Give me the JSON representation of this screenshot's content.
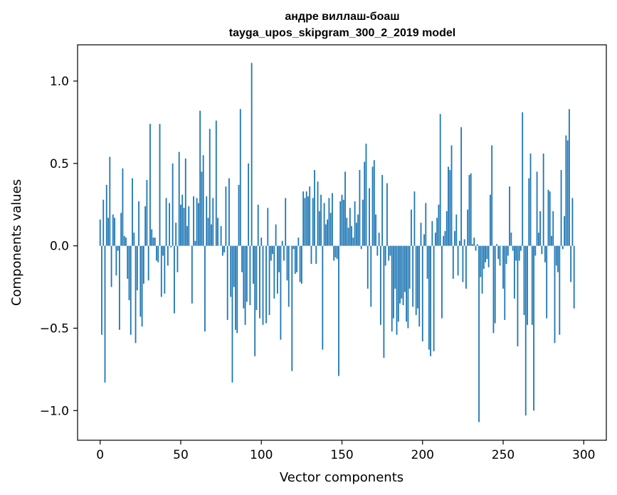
{
  "chart_data": {
    "type": "bar",
    "title": "андре виллаш-боаш",
    "subtitle": "tayga_upos_skipgram_300_2_2019 model",
    "xlabel": "Vector components",
    "ylabel": "Components values",
    "xlim": [
      -14,
      314
    ],
    "ylim": [
      -1.18,
      1.22
    ],
    "xticks": [
      0,
      50,
      100,
      150,
      200,
      250,
      300
    ],
    "xtick_labels": [
      "0",
      "50",
      "100",
      "150",
      "200",
      "250",
      "300"
    ],
    "yticks": [
      -1.0,
      -0.5,
      0.0,
      0.5,
      1.0
    ],
    "ytick_labels": [
      "−1.0",
      "−0.5",
      "0.0",
      "0.5",
      "1.0"
    ],
    "bar_color": "#1f77b4",
    "grid": false,
    "values": [
      0.16,
      -0.54,
      0.28,
      -0.83,
      0.37,
      0.17,
      0.54,
      -0.25,
      0.19,
      0.17,
      -0.18,
      -0.03,
      -0.51,
      0.2,
      0.47,
      0.06,
      0.05,
      -0.2,
      -0.33,
      -0.54,
      0.41,
      0.08,
      -0.59,
      -0.27,
      0.27,
      -0.43,
      -0.49,
      -0.23,
      0.24,
      0.4,
      -0.21,
      0.74,
      0.1,
      0.05,
      0.05,
      -0.09,
      -0.1,
      0.74,
      -0.31,
      -0.06,
      -0.29,
      0.29,
      -0.12,
      0.26,
      -0.01,
      0.5,
      -0.41,
      0.14,
      -0.16,
      0.57,
      0.25,
      0.31,
      0.23,
      0.53,
      0.12,
      0.24,
      0.0,
      -0.35,
      0.3,
      0.03,
      0.29,
      0.26,
      0.82,
      0.45,
      0.55,
      -0.52,
      0.3,
      0.17,
      0.71,
      0.13,
      0.29,
      0.0,
      0.76,
      0.17,
      0.0,
      0.12,
      -0.06,
      -0.04,
      0.36,
      -0.45,
      0.41,
      -0.31,
      -0.83,
      -0.25,
      -0.51,
      -0.53,
      0.37,
      0.83,
      -0.16,
      -0.38,
      -0.48,
      -0.34,
      0.5,
      -0.36,
      1.11,
      -0.23,
      -0.67,
      -0.39,
      0.25,
      -0.44,
      0.05,
      -0.48,
      0.0,
      -0.47,
      0.23,
      -0.42,
      -0.09,
      -0.05,
      -0.32,
      0.13,
      -0.29,
      -0.16,
      -0.57,
      0.03,
      -0.09,
      0.29,
      -0.21,
      -0.37,
      0.0,
      -0.76,
      -0.02,
      -0.17,
      -0.16,
      0.05,
      -0.22,
      -0.23,
      0.33,
      0.29,
      0.33,
      0.3,
      0.36,
      -0.11,
      0.29,
      0.46,
      -0.11,
      0.39,
      0.21,
      0.31,
      -0.63,
      0.26,
      0.13,
      0.16,
      0.29,
      0.2,
      0.32,
      -0.09,
      -0.07,
      -0.08,
      -0.79,
      0.27,
      0.31,
      0.28,
      0.45,
      0.17,
      0.11,
      0.23,
      0.12,
      0.05,
      0.27,
      0.14,
      0.19,
      0.46,
      -0.02,
      0.28,
      0.51,
      0.62,
      -0.26,
      0.35,
      -0.37,
      0.48,
      0.52,
      0.19,
      -0.06,
      0.08,
      -0.48,
      0.43,
      -0.68,
      -0.12,
      0.38,
      -0.09,
      -0.06,
      -0.52,
      -0.44,
      -0.26,
      -0.54,
      -0.46,
      -0.35,
      -0.32,
      -0.36,
      -0.28,
      -0.46,
      -0.5,
      -0.26,
      0.22,
      -0.37,
      0.33,
      -0.42,
      -0.38,
      -0.49,
      0.14,
      -0.58,
      0.07,
      0.26,
      -0.2,
      -0.63,
      -0.67,
      0.15,
      -0.64,
      0.08,
      0.17,
      0.25,
      0.8,
      -0.44,
      0.06,
      0.09,
      0.21,
      0.48,
      0.46,
      0.61,
      -0.2,
      0.09,
      0.19,
      -0.18,
      0.03,
      0.72,
      -0.22,
      0.04,
      -0.26,
      0.22,
      0.43,
      0.44,
      0.01,
      0.05,
      -0.03,
      0.01,
      -1.07,
      -0.19,
      -0.29,
      -0.14,
      -0.1,
      -0.08,
      -0.13,
      0.31,
      0.61,
      -0.53,
      -0.47,
      0.01,
      -0.08,
      -0.12,
      0.0,
      -0.26,
      -0.45,
      -0.11,
      -0.06,
      0.36,
      0.08,
      -0.03,
      -0.32,
      -0.09,
      -0.61,
      -0.09,
      -0.03,
      0.81,
      -0.42,
      -1.03,
      -0.48,
      0.41,
      0.56,
      -0.48,
      -1.0,
      -0.06,
      0.45,
      0.08,
      0.21,
      -0.05,
      0.56,
      -0.1,
      -0.44,
      0.34,
      0.33,
      0.06,
      0.21,
      -0.59,
      -0.12,
      -0.16,
      -0.54,
      0.46,
      -0.02,
      0.18,
      0.67,
      0.64,
      0.83,
      -0.22,
      0.29,
      -0.38
    ]
  }
}
